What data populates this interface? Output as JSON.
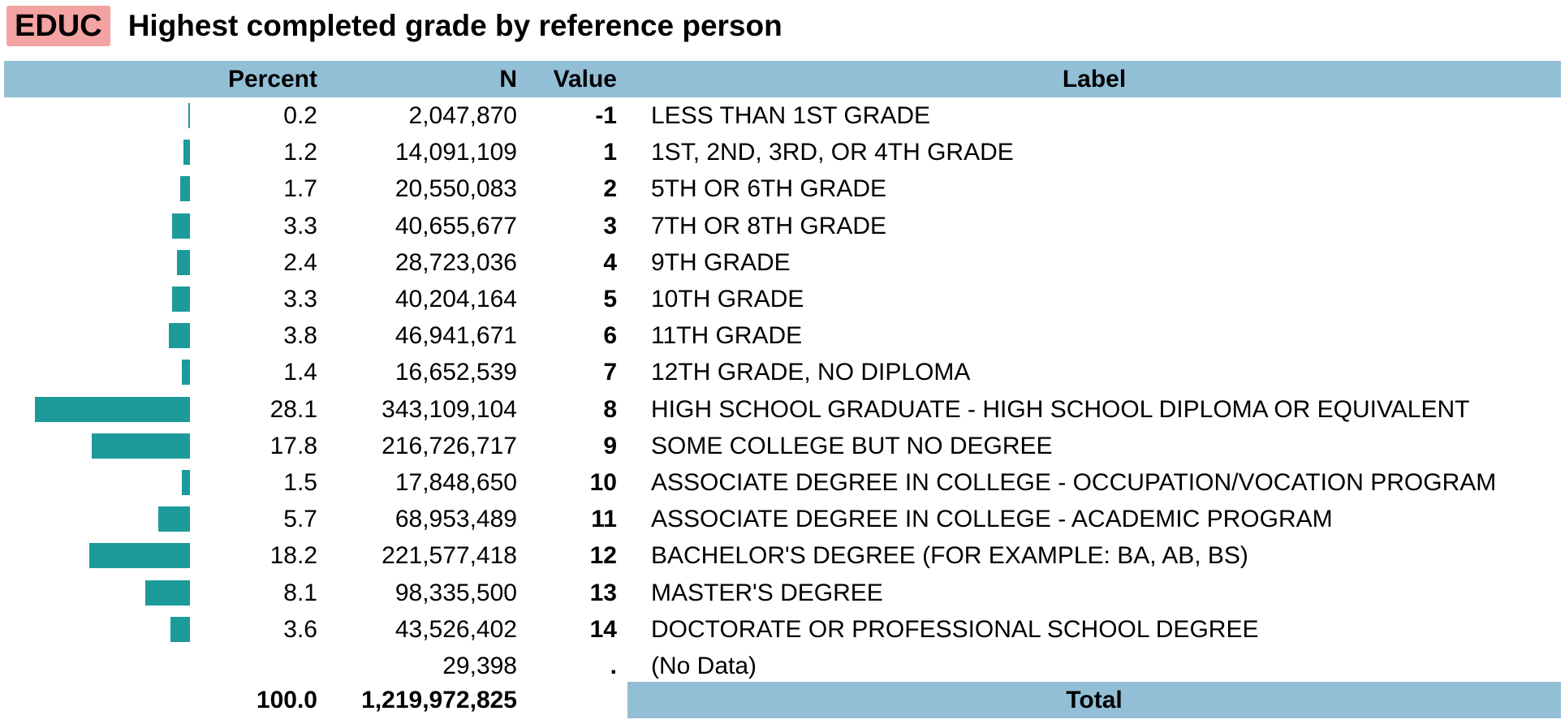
{
  "header": {
    "variable": "EDUC",
    "title": "Highest completed grade by reference person"
  },
  "columns": {
    "percent": "Percent",
    "n": "N",
    "value": "Value",
    "label": "Label"
  },
  "colors": {
    "badge": "#f4a3a3",
    "header_bg": "#93bfd6",
    "bar": "#1d9a9a"
  },
  "rows": [
    {
      "percent": "0.2",
      "n": "2,047,870",
      "value": "-1",
      "label": "LESS THAN 1ST GRADE",
      "pct_num": 0.2
    },
    {
      "percent": "1.2",
      "n": "14,091,109",
      "value": "1",
      "label": "1ST, 2ND, 3RD, OR 4TH GRADE",
      "pct_num": 1.2
    },
    {
      "percent": "1.7",
      "n": "20,550,083",
      "value": "2",
      "label": "5TH OR 6TH GRADE",
      "pct_num": 1.7
    },
    {
      "percent": "3.3",
      "n": "40,655,677",
      "value": "3",
      "label": "7TH OR 8TH GRADE",
      "pct_num": 3.3
    },
    {
      "percent": "2.4",
      "n": "28,723,036",
      "value": "4",
      "label": "9TH GRADE",
      "pct_num": 2.4
    },
    {
      "percent": "3.3",
      "n": "40,204,164",
      "value": "5",
      "label": "10TH GRADE",
      "pct_num": 3.3
    },
    {
      "percent": "3.8",
      "n": "46,941,671",
      "value": "6",
      "label": "11TH GRADE",
      "pct_num": 3.8
    },
    {
      "percent": "1.4",
      "n": "16,652,539",
      "value": "7",
      "label": "12TH GRADE, NO DIPLOMA",
      "pct_num": 1.4
    },
    {
      "percent": "28.1",
      "n": "343,109,104",
      "value": "8",
      "label": "HIGH SCHOOL GRADUATE - HIGH SCHOOL DIPLOMA OR EQUIVALENT",
      "pct_num": 28.1
    },
    {
      "percent": "17.8",
      "n": "216,726,717",
      "value": "9",
      "label": "SOME COLLEGE BUT NO DEGREE",
      "pct_num": 17.8
    },
    {
      "percent": "1.5",
      "n": "17,848,650",
      "value": "10",
      "label": "ASSOCIATE DEGREE IN COLLEGE - OCCUPATION/VOCATION PROGRAM",
      "pct_num": 1.5
    },
    {
      "percent": "5.7",
      "n": "68,953,489",
      "value": "11",
      "label": "ASSOCIATE DEGREE IN COLLEGE - ACADEMIC PROGRAM",
      "pct_num": 5.7
    },
    {
      "percent": "18.2",
      "n": "221,577,418",
      "value": "12",
      "label": "BACHELOR'S DEGREE (FOR EXAMPLE: BA, AB, BS)",
      "pct_num": 18.2
    },
    {
      "percent": "8.1",
      "n": "98,335,500",
      "value": "13",
      "label": "MASTER'S DEGREE",
      "pct_num": 8.1
    },
    {
      "percent": "3.6",
      "n": "43,526,402",
      "value": "14",
      "label": "DOCTORATE OR PROFESSIONAL SCHOOL DEGREE",
      "pct_num": 3.6
    },
    {
      "percent": "",
      "n": "29,398",
      "value": ".",
      "label": "(No Data)",
      "pct_num": 0
    }
  ],
  "total": {
    "percent": "100.0",
    "n": "1,219,972,825",
    "label": "Total"
  }
}
